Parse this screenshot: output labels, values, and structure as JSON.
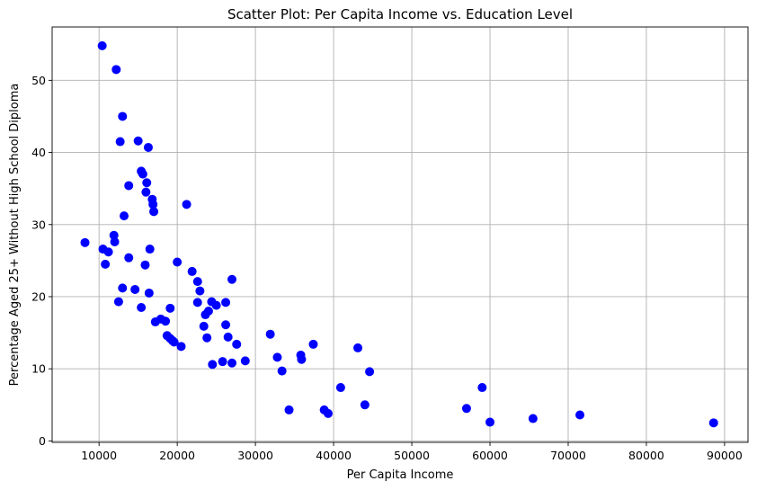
{
  "chart_data": {
    "type": "scatter",
    "title": "Scatter Plot: Per Capita Income vs. Education Level",
    "xlabel": "Per Capita Income",
    "ylabel": "Percentage Aged 25+ Without High School Diploma",
    "xlim": [
      4000,
      93000
    ],
    "ylim": [
      -0.2,
      57.4
    ],
    "xticks": [
      10000,
      20000,
      30000,
      40000,
      50000,
      60000,
      70000,
      80000,
      90000
    ],
    "yticks": [
      0,
      10,
      20,
      30,
      40,
      50
    ],
    "grid": true,
    "marker_color": "#0000ff",
    "points": [
      [
        8200,
        27.5
      ],
      [
        10400,
        54.8
      ],
      [
        10500,
        26.6
      ],
      [
        10800,
        24.5
      ],
      [
        11200,
        26.2
      ],
      [
        11900,
        28.5
      ],
      [
        12000,
        27.6
      ],
      [
        12200,
        51.5
      ],
      [
        12500,
        19.3
      ],
      [
        12700,
        41.5
      ],
      [
        13000,
        45.0
      ],
      [
        13000,
        21.2
      ],
      [
        13200,
        31.2
      ],
      [
        13800,
        35.4
      ],
      [
        13800,
        25.4
      ],
      [
        14600,
        21.0
      ],
      [
        15000,
        41.6
      ],
      [
        15400,
        37.4
      ],
      [
        15400,
        18.5
      ],
      [
        15600,
        37.0
      ],
      [
        15900,
        24.4
      ],
      [
        16100,
        35.8
      ],
      [
        16000,
        34.5
      ],
      [
        16300,
        40.7
      ],
      [
        16400,
        20.5
      ],
      [
        16500,
        26.6
      ],
      [
        16800,
        33.5
      ],
      [
        16900,
        32.8
      ],
      [
        17000,
        31.8
      ],
      [
        17200,
        16.5
      ],
      [
        17900,
        16.9
      ],
      [
        18500,
        16.6
      ],
      [
        18700,
        14.6
      ],
      [
        19100,
        18.4
      ],
      [
        19100,
        14.2
      ],
      [
        19400,
        13.9
      ],
      [
        19600,
        13.7
      ],
      [
        20000,
        24.8
      ],
      [
        20500,
        13.1
      ],
      [
        21200,
        32.8
      ],
      [
        21900,
        23.5
      ],
      [
        22600,
        22.1
      ],
      [
        22600,
        19.2
      ],
      [
        22900,
        20.8
      ],
      [
        23400,
        15.9
      ],
      [
        23600,
        17.5
      ],
      [
        23800,
        14.3
      ],
      [
        24000,
        18.0
      ],
      [
        24400,
        19.3
      ],
      [
        24500,
        10.6
      ],
      [
        25000,
        18.8
      ],
      [
        25800,
        11.0
      ],
      [
        26200,
        19.2
      ],
      [
        26200,
        16.1
      ],
      [
        26500,
        14.4
      ],
      [
        27000,
        22.4
      ],
      [
        27000,
        10.8
      ],
      [
        27600,
        13.4
      ],
      [
        28700,
        11.1
      ],
      [
        31900,
        14.8
      ],
      [
        32800,
        11.6
      ],
      [
        33400,
        9.7
      ],
      [
        34300,
        4.3
      ],
      [
        35800,
        11.9
      ],
      [
        35900,
        11.3
      ],
      [
        37400,
        13.4
      ],
      [
        38800,
        4.3
      ],
      [
        39300,
        3.8
      ],
      [
        40900,
        7.4
      ],
      [
        43100,
        12.9
      ],
      [
        44000,
        5.0
      ],
      [
        44600,
        9.6
      ],
      [
        57000,
        4.5
      ],
      [
        59000,
        7.4
      ],
      [
        60000,
        2.6
      ],
      [
        65500,
        3.1
      ],
      [
        71500,
        3.6
      ],
      [
        88600,
        2.5
      ]
    ]
  }
}
